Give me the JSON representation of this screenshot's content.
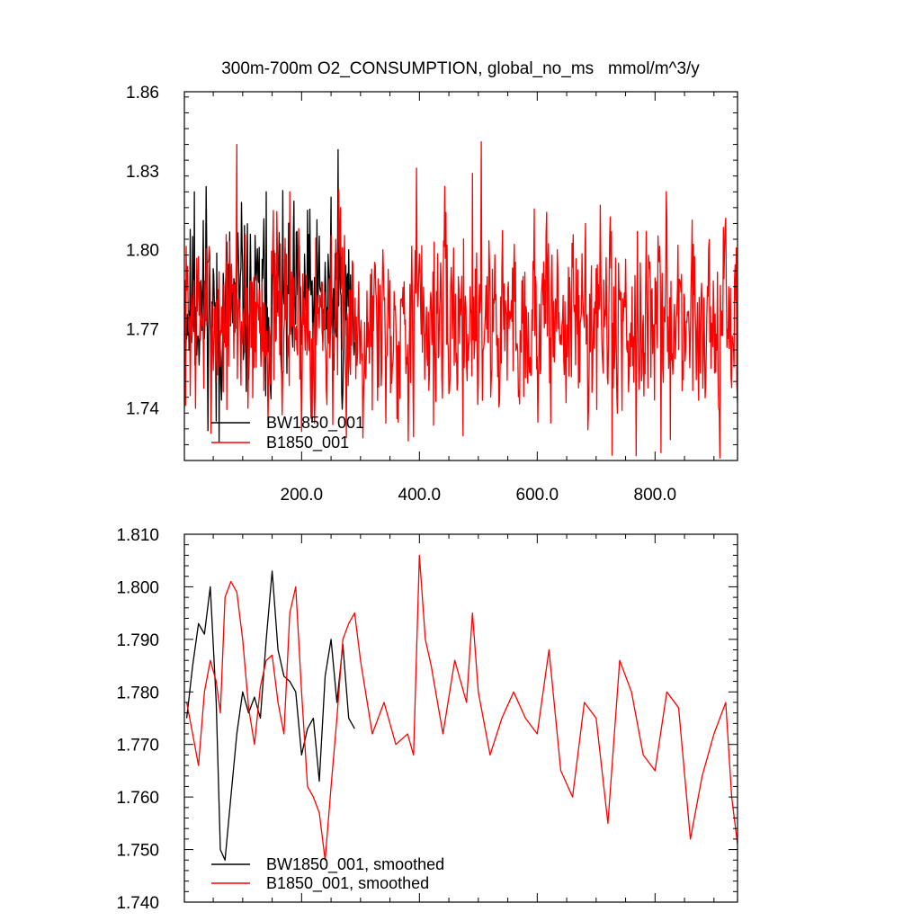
{
  "chart_data": [
    {
      "type": "line",
      "title": "300m-700m O2_CONSUMPTION, global_no_ms   mmol/m^3/y",
      "xlim": [
        1,
        940
      ],
      "ylim": [
        1.72,
        1.86
      ],
      "yticks": [
        1.74,
        1.77,
        1.8,
        1.83,
        1.86
      ],
      "ytick_labels": [
        "1.74",
        "1.77",
        "1.80",
        "1.83",
        "1.86"
      ],
      "xticks": [
        200,
        400,
        600,
        800
      ],
      "xtick_labels": [
        "200.0",
        "400.0",
        "600.0",
        "800.0"
      ],
      "legend_position": "bottom-left",
      "series": [
        {
          "name": "BW1850_001",
          "color": "#000000",
          "x_start": 1,
          "length": 290,
          "mean": 1.778,
          "amplitude": 0.016,
          "seed": 11,
          "anchors": [
            [
              1,
              1.74
            ],
            [
              18,
              1.822
            ],
            [
              22,
              1.76
            ],
            [
              38,
              1.824
            ],
            [
              55,
              1.735
            ],
            [
              60,
              1.727
            ],
            [
              98,
              1.818
            ],
            [
              140,
              1.822
            ],
            [
              185,
              1.763
            ],
            [
              210,
              1.815
            ],
            [
              250,
              1.82
            ],
            [
              262,
              1.838
            ],
            [
              280,
              1.8
            ],
            [
              290,
              1.765
            ]
          ]
        },
        {
          "name": "B1850_001",
          "color": "#ff0000",
          "x_start": 1,
          "length": 940,
          "mean": 1.774,
          "amplitude": 0.018,
          "seed": 7,
          "anchors": [
            [
              90,
              1.84
            ],
            [
              180,
              1.822
            ],
            [
              390,
              1.729
            ],
            [
              395,
              1.831
            ],
            [
              490,
              1.829
            ],
            [
              505,
              1.841
            ],
            [
              727,
              1.722
            ],
            [
              810,
              1.723
            ],
            [
              910,
              1.721
            ],
            [
              940,
              1.742
            ]
          ]
        }
      ]
    },
    {
      "type": "line",
      "title": "",
      "xlim": [
        1,
        940
      ],
      "ylim": [
        1.74,
        1.81
      ],
      "yticks": [
        1.74,
        1.75,
        1.76,
        1.77,
        1.78,
        1.79,
        1.8,
        1.81
      ],
      "ytick_labels": [
        "1.740",
        "1.750",
        "1.760",
        "1.770",
        "1.780",
        "1.790",
        "1.800",
        "1.810"
      ],
      "xticks": [
        200,
        400,
        600,
        800
      ],
      "xtick_labels": [],
      "legend_position": "bottom-left",
      "series": [
        {
          "name": "BW1850_001, smoothed",
          "color": "#000000",
          "x": [
            5,
            15,
            25,
            35,
            45,
            55,
            62,
            70,
            80,
            90,
            100,
            110,
            120,
            130,
            140,
            150,
            160,
            170,
            180,
            190,
            200,
            210,
            220,
            230,
            240,
            250,
            260,
            270,
            280,
            290
          ],
          "y": [
            1.775,
            1.785,
            1.793,
            1.791,
            1.8,
            1.778,
            1.75,
            1.748,
            1.76,
            1.772,
            1.78,
            1.776,
            1.779,
            1.775,
            1.79,
            1.803,
            1.788,
            1.783,
            1.782,
            1.78,
            1.768,
            1.773,
            1.775,
            1.763,
            1.783,
            1.79,
            1.778,
            1.789,
            1.775,
            1.773
          ]
        },
        {
          "name": "B1850_001, smoothed",
          "color": "#ff0000",
          "x": [
            5,
            15,
            25,
            35,
            45,
            55,
            62,
            70,
            80,
            90,
            100,
            110,
            120,
            130,
            140,
            150,
            160,
            170,
            180,
            190,
            200,
            210,
            220,
            230,
            240,
            250,
            260,
            270,
            280,
            290,
            300,
            320,
            340,
            360,
            380,
            390,
            400,
            410,
            420,
            440,
            460,
            480,
            490,
            500,
            520,
            540,
            560,
            580,
            600,
            620,
            640,
            660,
            680,
            700,
            720,
            740,
            760,
            780,
            800,
            820,
            840,
            860,
            880,
            900,
            920,
            930,
            940
          ],
          "y": [
            1.778,
            1.772,
            1.766,
            1.78,
            1.786,
            1.782,
            1.776,
            1.798,
            1.801,
            1.799,
            1.79,
            1.777,
            1.77,
            1.781,
            1.786,
            1.787,
            1.778,
            1.772,
            1.795,
            1.8,
            1.78,
            1.762,
            1.76,
            1.757,
            1.748,
            1.762,
            1.775,
            1.79,
            1.793,
            1.795,
            1.786,
            1.772,
            1.778,
            1.77,
            1.772,
            1.768,
            1.806,
            1.79,
            1.785,
            1.772,
            1.786,
            1.778,
            1.795,
            1.78,
            1.768,
            1.775,
            1.78,
            1.775,
            1.772,
            1.788,
            1.765,
            1.76,
            1.778,
            1.775,
            1.755,
            1.786,
            1.78,
            1.768,
            1.765,
            1.78,
            1.777,
            1.752,
            1.764,
            1.772,
            1.778,
            1.76,
            1.751
          ]
        }
      ]
    }
  ]
}
